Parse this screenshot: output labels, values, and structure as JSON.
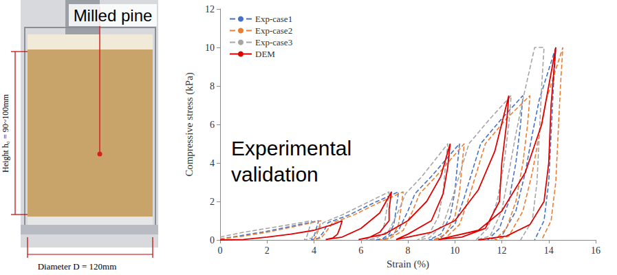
{
  "photo_panel": {
    "title": "Milled pine",
    "height_label": "Height h₀ = 90~100mm",
    "diameter_label": "Diameter D = 120mm"
  },
  "chart_data": {
    "type": "line",
    "annotation": "Experimental validation",
    "x_label": "Strain (%)",
    "y_label": "Compressive stress (kPa)",
    "xlim": [
      0,
      16
    ],
    "xticks": [
      0,
      2,
      4,
      6,
      8,
      10,
      12,
      14,
      16
    ],
    "ylim": [
      0,
      12
    ],
    "yticks": [
      0,
      2,
      4,
      6,
      8,
      10,
      12
    ],
    "grid": false,
    "legend": "upper left",
    "series": [
      {
        "name": "Exp-case1",
        "color": "#4472c4",
        "line_style": "dashed",
        "x": [
          0,
          1,
          2,
          3,
          4.2,
          4.1,
          4.0,
          3.9,
          3.9,
          4.2,
          4.4,
          4.6,
          5.5,
          6.5,
          7.6,
          7.5,
          7.4,
          7.2,
          6.9,
          6.6,
          7.0,
          7.6,
          8.0,
          8.3,
          9.0,
          10.2,
          10.1,
          10.0,
          9.8,
          9.4,
          8.9,
          9.4,
          10.0,
          10.4,
          10.8,
          11.1,
          12.0,
          12.9,
          12.8,
          12.6,
          12.3,
          11.9,
          11.4,
          12.0,
          12.6,
          13.0,
          13.3,
          13.6,
          14.3,
          14.2,
          14.1,
          14.0,
          13.8,
          13.4
        ],
        "values": [
          0.05,
          0.25,
          0.45,
          0.7,
          1.0,
          0.6,
          0.2,
          0.05,
          0,
          0.1,
          0.4,
          0.9,
          1.3,
          1.9,
          2.5,
          1.6,
          0.8,
          0.3,
          0.05,
          0,
          0.05,
          0.5,
          1.5,
          2.4,
          3.3,
          5.0,
          3.8,
          2.5,
          1.2,
          0.3,
          0,
          0.1,
          0.8,
          2.2,
          3.8,
          5.0,
          6.3,
          7.5,
          6.0,
          4.0,
          2.0,
          0.6,
          0,
          0.2,
          1.5,
          3.5,
          5.5,
          7.3,
          10.0,
          8.0,
          5.5,
          3.0,
          1.0,
          0
        ]
      },
      {
        "name": "Exp-case2",
        "color": "#ed7d31",
        "line_style": "dashed",
        "x": [
          0,
          1,
          2,
          3,
          4.3,
          4.2,
          4.1,
          4.0,
          4.0,
          4.3,
          4.5,
          4.8,
          5.7,
          6.7,
          7.8,
          7.7,
          7.6,
          7.4,
          7.1,
          6.8,
          7.2,
          7.8,
          8.2,
          8.5,
          9.2,
          10.4,
          10.3,
          10.2,
          10.0,
          9.6,
          9.1,
          9.6,
          10.2,
          10.6,
          11.0,
          11.3,
          12.2,
          13.2,
          13.1,
          12.9,
          12.6,
          12.2,
          11.7,
          12.3,
          12.9,
          13.3,
          13.6,
          13.9,
          14.6,
          14.5,
          14.4,
          14.3,
          14.1,
          13.7
        ],
        "values": [
          0.05,
          0.2,
          0.4,
          0.65,
          1.0,
          0.6,
          0.2,
          0.05,
          0,
          0.1,
          0.4,
          0.9,
          1.3,
          1.9,
          2.5,
          1.6,
          0.8,
          0.3,
          0.05,
          0,
          0.05,
          0.5,
          1.5,
          2.4,
          3.3,
          5.0,
          3.8,
          2.5,
          1.2,
          0.3,
          0,
          0.1,
          0.8,
          2.2,
          3.8,
          5.0,
          6.3,
          7.5,
          6.0,
          4.0,
          2.0,
          0.6,
          0,
          0.2,
          1.5,
          3.5,
          5.5,
          7.3,
          10.0,
          8.0,
          5.5,
          3.0,
          1.0,
          0
        ]
      },
      {
        "name": "Exp-case3",
        "color": "#a5a5a5",
        "line_style": "dashed",
        "x": [
          0,
          1,
          2,
          3,
          3.9,
          3.8,
          3.7,
          3.6,
          3.6,
          3.9,
          4.1,
          4.4,
          5.2,
          6.2,
          7.2,
          7.1,
          7.0,
          6.8,
          6.5,
          6.2,
          6.6,
          7.2,
          7.6,
          7.9,
          8.6,
          9.7,
          9.6,
          9.5,
          9.3,
          8.9,
          8.4,
          8.9,
          9.5,
          9.9,
          10.3,
          10.6,
          11.5,
          12.4,
          12.3,
          12.1,
          11.8,
          11.4,
          10.9,
          11.5,
          12.0,
          12.3,
          12.6,
          12.9,
          13.4,
          13.8,
          13.7,
          13.6,
          13.5,
          13.3,
          12.8
        ],
        "values": [
          0.15,
          0.4,
          0.6,
          0.8,
          1.0,
          0.6,
          0.2,
          0.05,
          0,
          0.1,
          0.4,
          0.9,
          1.3,
          1.9,
          2.5,
          1.6,
          0.8,
          0.3,
          0.05,
          0,
          0.05,
          0.5,
          1.5,
          2.4,
          3.3,
          5.0,
          3.8,
          2.5,
          1.2,
          0.3,
          0,
          0.1,
          0.8,
          2.2,
          3.8,
          5.0,
          6.3,
          7.5,
          6.0,
          4.0,
          2.0,
          0.6,
          0,
          0.2,
          1.5,
          3.5,
          5.5,
          7.3,
          10.0,
          10.0,
          8.0,
          5.5,
          3.0,
          1.0,
          0
        ]
      },
      {
        "name": "DEM",
        "color": "#e00000",
        "line_style": "solid",
        "x": [
          0,
          1,
          2,
          3,
          4,
          4.8,
          5.2,
          5.1,
          5.0,
          4.8,
          4.5,
          4.5,
          5.2,
          6.0,
          6.8,
          7.3,
          7.2,
          7.2,
          6.8,
          6.3,
          5.9,
          5.9,
          7.0,
          8.0,
          8.8,
          9.4,
          9.8,
          9.7,
          9.5,
          9.0,
          8.0,
          7.5,
          7.5,
          9.0,
          10.0,
          11.0,
          11.7,
          12.3,
          12.2,
          12.0,
          11.9,
          11.3,
          10.3,
          9.3,
          9.3,
          11.0,
          12.0,
          13.0,
          13.7,
          14.3,
          14.1,
          14.0,
          13.8,
          13.2,
          12.2,
          11.0
        ],
        "values": [
          0,
          0.02,
          0.15,
          0.3,
          0.5,
          0.8,
          1.0,
          0.6,
          0.3,
          0.1,
          0.02,
          0,
          0.15,
          0.6,
          1.4,
          2.5,
          1.6,
          1.0,
          0.4,
          0.1,
          0.02,
          0,
          0.3,
          1.0,
          2.0,
          3.3,
          5.0,
          3.8,
          2.4,
          1.0,
          0.3,
          0.02,
          0,
          0.4,
          1.0,
          2.6,
          4.6,
          7.5,
          6.0,
          4.0,
          2.0,
          0.6,
          0.15,
          0.02,
          0,
          0.5,
          1.5,
          3.5,
          6.0,
          10.0,
          7.0,
          4.0,
          2.0,
          0.8,
          0.2,
          0
        ]
      }
    ]
  }
}
